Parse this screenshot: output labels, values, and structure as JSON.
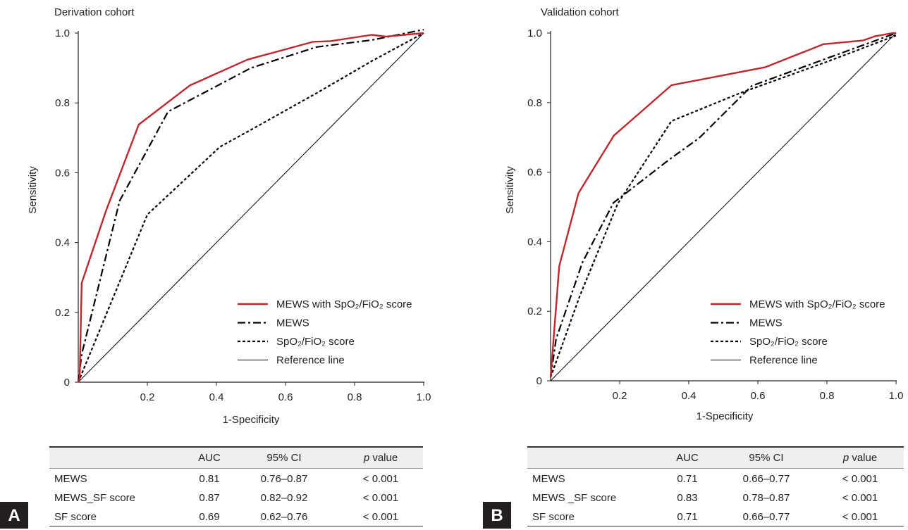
{
  "chart_data": [
    {
      "type": "line",
      "title": "Derivation cohort",
      "xlabel": "1-Specificity",
      "ylabel": "Sensitivity",
      "xlim": [
        0,
        1
      ],
      "ylim": [
        0,
        1
      ],
      "xticks": [
        "0.2",
        "0.4",
        "0.6",
        "0.8",
        "1.0"
      ],
      "yticks": [
        "0",
        "0.2",
        "0.4",
        "0.6",
        "0.8",
        "1.0"
      ],
      "grid": false,
      "legend_position": "bottom-right",
      "series": [
        {
          "name": "MEWS with SpO₂/FiO₂ score",
          "color": "#c0272d",
          "style": "solid",
          "x": [
            0,
            0.004,
            0.01,
            0.08,
            0.175,
            0.323,
            0.49,
            0.68,
            0.73,
            0.85,
            0.89,
            1.0
          ],
          "y": [
            0,
            0.01,
            0.284,
            0.49,
            0.738,
            0.85,
            0.924,
            0.975,
            0.977,
            0.995,
            0.99,
            1.0
          ]
        },
        {
          "name": "MEWS",
          "color": "#000000",
          "style": "dash-dot",
          "x": [
            0,
            0.01,
            0.12,
            0.26,
            0.5,
            0.69,
            0.85,
            1.0
          ],
          "y": [
            0,
            0.08,
            0.52,
            0.775,
            0.9,
            0.96,
            0.98,
            1.01
          ]
        },
        {
          "name": "SpO₂/FiO₂ score",
          "color": "#000000",
          "style": "dotted",
          "x": [
            0,
            0.2,
            0.41,
            0.5,
            0.69,
            0.85,
            1.0
          ],
          "y": [
            0,
            0.48,
            0.674,
            0.723,
            0.828,
            0.92,
            1.0
          ]
        },
        {
          "name": "Reference line",
          "color": "#000000",
          "style": "thin",
          "x": [
            0,
            1
          ],
          "y": [
            0,
            1
          ]
        }
      ],
      "table": {
        "headers": [
          "",
          "AUC",
          "95% CI",
          "p value"
        ],
        "rows": [
          [
            "MEWS",
            "0.81",
            "0.76–0.87",
            "< 0.001"
          ],
          [
            "MEWS_SF score",
            "0.87",
            "0.82–0.92",
            "< 0.001"
          ],
          [
            "SF score",
            "0.69",
            "0.62–0.76",
            "< 0.001"
          ]
        ]
      },
      "panel_label": "A"
    },
    {
      "type": "line",
      "title": "Validation cohort",
      "xlabel": "1-Specificity",
      "ylabel": "Sensitivity",
      "xlim": [
        0,
        1
      ],
      "ylim": [
        0,
        1
      ],
      "xticks": [
        "0.2",
        "0.4",
        "0.6",
        "0.8",
        "1.0"
      ],
      "yticks": [
        "0",
        "0.2",
        "0.4",
        "0.6",
        "0.8",
        "1.0"
      ],
      "grid": false,
      "legend_position": "bottom-right",
      "series": [
        {
          "name": "MEWS with SpO₂/FiO₂ score",
          "color": "#c0272d",
          "style": "solid",
          "x": [
            0,
            0.025,
            0.081,
            0.183,
            0.35,
            0.622,
            0.79,
            0.905,
            0.94,
            0.99,
            1.0
          ],
          "y": [
            0.01,
            0.33,
            0.54,
            0.705,
            0.85,
            0.902,
            0.968,
            0.979,
            0.991,
            1.0,
            1.0
          ]
        },
        {
          "name": "MEWS",
          "color": "#000000",
          "style": "dash-dot",
          "x": [
            0,
            0.016,
            0.092,
            0.182,
            0.346,
            0.43,
            0.582,
            0.796,
            1.0
          ],
          "y": [
            0.01,
            0.12,
            0.34,
            0.512,
            0.638,
            0.698,
            0.848,
            0.926,
            1.0
          ]
        },
        {
          "name": "SpO₂/FiO₂ score",
          "color": "#000000",
          "style": "dotted",
          "x": [
            0,
            0.085,
            0.194,
            0.35,
            0.55,
            0.796,
            1.0
          ],
          "y": [
            0.01,
            0.245,
            0.509,
            0.747,
            0.828,
            0.916,
            0.993
          ]
        },
        {
          "name": "Reference line",
          "color": "#000000",
          "style": "thin",
          "x": [
            0,
            1
          ],
          "y": [
            0,
            1
          ]
        }
      ],
      "table": {
        "headers": [
          "",
          "AUC",
          "95% CI",
          "p value"
        ],
        "rows": [
          [
            "MEWS",
            "0.71",
            "0.66–0.77",
            "< 0.001"
          ],
          [
            "MEWS _SF score",
            "0.83",
            "0.78–0.87",
            "< 0.001"
          ],
          [
            "SF score",
            "0.71",
            "0.66–0.77",
            "< 0.001"
          ]
        ]
      },
      "panel_label": "B"
    }
  ]
}
